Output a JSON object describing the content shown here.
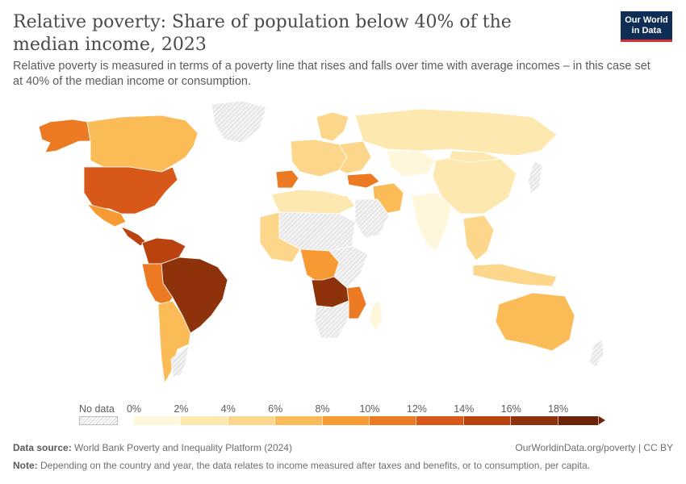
{
  "header": {
    "title": "Relative poverty: Share of population below 40% of the median income, 2023",
    "subtitle": "Relative poverty is measured in terms of a poverty line that rises and falls over time with average incomes – in this case set at 40% of the median income or consumption.",
    "logo_line1": "Our World",
    "logo_line2": "in Data"
  },
  "legend": {
    "no_data_label": "No data",
    "ticks": [
      "0%",
      "2%",
      "4%",
      "6%",
      "8%",
      "10%",
      "12%",
      "14%",
      "16%",
      "18%"
    ],
    "bin_colors": [
      "#fff7dc",
      "#fde9b0",
      "#fcd68a",
      "#fbbc58",
      "#f79a33",
      "#ec7a23",
      "#d8581a",
      "#b9420f",
      "#8e320b",
      "#6b2408"
    ]
  },
  "map": {
    "colors": {
      "ocean": "#ffffff",
      "border": "#ffffff",
      "no_data": "hatched-grey"
    },
    "regions": [
      {
        "name": "alaska",
        "value": 10
      },
      {
        "name": "canada",
        "value": 6
      },
      {
        "name": "greenland",
        "value": null
      },
      {
        "name": "usa",
        "value": 12
      },
      {
        "name": "mexico",
        "value": 9
      },
      {
        "name": "central-america",
        "value": 14
      },
      {
        "name": "colombia-venezuela",
        "value": 14
      },
      {
        "name": "brazil",
        "value": 17
      },
      {
        "name": "peru-bolivia",
        "value": 11
      },
      {
        "name": "chile-argentina",
        "value": 7
      },
      {
        "name": "argentina",
        "value": null
      },
      {
        "name": "iberia",
        "value": 11
      },
      {
        "name": "western-europe",
        "value": 5
      },
      {
        "name": "scandinavia",
        "value": 4
      },
      {
        "name": "eastern-europe",
        "value": 4
      },
      {
        "name": "turkey",
        "value": 11
      },
      {
        "name": "russia",
        "value": 3
      },
      {
        "name": "kazakhstan",
        "value": 1
      },
      {
        "name": "china",
        "value": 3
      },
      {
        "name": "india",
        "value": 1
      },
      {
        "name": "iran",
        "value": 6
      },
      {
        "name": "arabia",
        "value": null
      },
      {
        "name": "north-africa",
        "value": 2
      },
      {
        "name": "sahara",
        "value": null
      },
      {
        "name": "west-africa",
        "value": 5
      },
      {
        "name": "central-africa",
        "value": 9
      },
      {
        "name": "east-africa",
        "value": null
      },
      {
        "name": "angola-zambia",
        "value": 16
      },
      {
        "name": "mozambique",
        "value": 11
      },
      {
        "name": "southern-africa",
        "value": null
      },
      {
        "name": "madagascar",
        "value": 1
      },
      {
        "name": "southeast-asia",
        "value": 4
      },
      {
        "name": "indonesia",
        "value": 5
      },
      {
        "name": "australia",
        "value": 7
      },
      {
        "name": "new-zealand",
        "value": null
      },
      {
        "name": "japan",
        "value": null
      },
      {
        "name": "mongolia",
        "value": 3
      }
    ]
  },
  "footer": {
    "source_label": "Data source:",
    "source_text": "World Bank Poverty and Inequality Platform (2024)",
    "url": "OurWorldinData.org/poverty | CC BY",
    "note_label": "Note:",
    "note_text": "Depending on the country and year, the data relates to income measured after taxes and benefits, or to consumption, per capita."
  }
}
